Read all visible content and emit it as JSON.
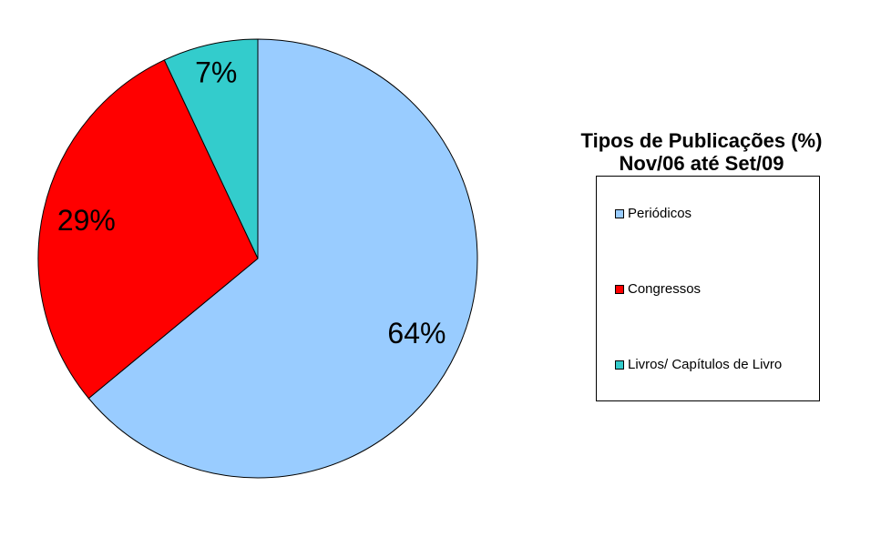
{
  "chart_data": {
    "type": "pie",
    "title": [
      "Tipos de Publicações (%)",
      "Nov/06 até Set/09"
    ],
    "legend_position": "right",
    "slices": [
      {
        "name": "Periódicos",
        "value": 64,
        "label": "64%",
        "color": "#99ccff"
      },
      {
        "name": "Congressos",
        "value": 29,
        "label": "29%",
        "color": "#ff0000"
      },
      {
        "name": "Livros/ Capítulos de Livro",
        "value": 7,
        "label": "7%",
        "color": "#33cccc"
      }
    ]
  }
}
